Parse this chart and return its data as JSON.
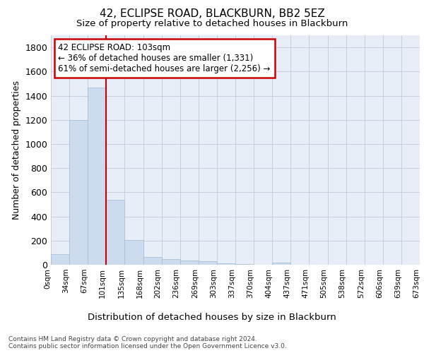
{
  "title": "42, ECLIPSE ROAD, BLACKBURN, BB2 5EZ",
  "subtitle": "Size of property relative to detached houses in Blackburn",
  "xlabel": "Distribution of detached houses by size in Blackburn",
  "ylabel": "Number of detached properties",
  "bar_color": "#ccdcee",
  "bar_edge_color": "#aac0d8",
  "vline_color": "#cc0000",
  "vline_x": 3,
  "annotation_text": "42 ECLIPSE ROAD: 103sqm\n← 36% of detached houses are smaller (1,331)\n61% of semi-detached houses are larger (2,256) →",
  "annotation_box_color": "#ffffff",
  "annotation_box_edge": "#cc0000",
  "bin_labels": [
    "0sqm",
    "34sqm",
    "67sqm",
    "101sqm",
    "135sqm",
    "168sqm",
    "202sqm",
    "236sqm",
    "269sqm",
    "303sqm",
    "337sqm",
    "370sqm",
    "404sqm",
    "437sqm",
    "471sqm",
    "505sqm",
    "538sqm",
    "572sqm",
    "606sqm",
    "639sqm",
    "673sqm"
  ],
  "bar_heights": [
    90,
    1200,
    1470,
    540,
    205,
    65,
    48,
    35,
    28,
    12,
    5,
    0,
    15,
    0,
    0,
    0,
    0,
    0,
    0,
    0
  ],
  "ylim": [
    0,
    1900
  ],
  "yticks": [
    0,
    200,
    400,
    600,
    800,
    1000,
    1200,
    1400,
    1600,
    1800
  ],
  "footer_line1": "Contains HM Land Registry data © Crown copyright and database right 2024.",
  "footer_line2": "Contains public sector information licensed under the Open Government Licence v3.0.",
  "bg_color": "#ffffff",
  "plot_bg_color": "#e8eef8"
}
